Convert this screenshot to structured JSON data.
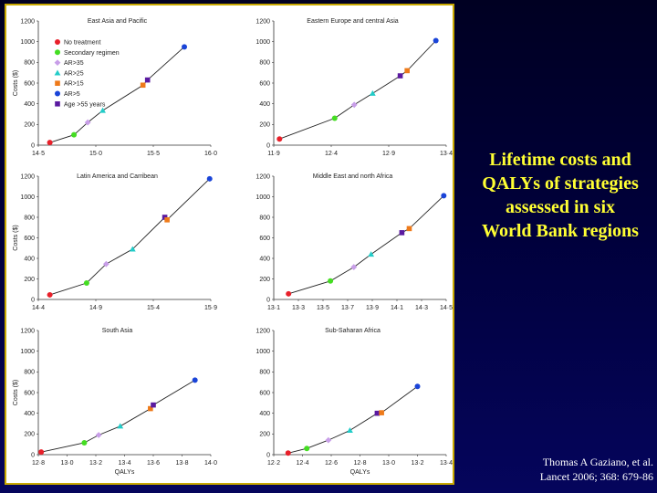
{
  "caption": {
    "lines": [
      "Lifetime costs and",
      "QALYs of strategies",
      "assessed in six",
      "World Bank regions"
    ]
  },
  "citation": {
    "author": "Thomas A Gaziano, et al.",
    "source": "Lancet 2006; 368: 679-86"
  },
  "legend": [
    {
      "label": "No treatment",
      "color": "#e8202a",
      "shape": "circle"
    },
    {
      "label": "Secondary regimen",
      "color": "#44dd22",
      "shape": "circle"
    },
    {
      "label": "AR>35",
      "color": "#c89ee8",
      "shape": "diamond"
    },
    {
      "label": "AR>25",
      "color": "#22ccc8",
      "shape": "triangle"
    },
    {
      "label": "AR>15",
      "color": "#ee7a1a",
      "shape": "square"
    },
    {
      "label": "AR>5",
      "color": "#1a44d8",
      "shape": "circle"
    },
    {
      "label": "Age >55 years",
      "color": "#5a1aa0",
      "shape": "square"
    }
  ],
  "chart_data": [
    {
      "type": "line",
      "title": "East Asia and Pacific",
      "xlabel": "",
      "ylabel": "Costs ($)",
      "xlim": [
        14.5,
        16.0
      ],
      "ylim": [
        0,
        1200
      ],
      "xticks": [
        "14·5",
        "15·0",
        "15·5",
        "16·0"
      ],
      "yticks": [
        "0",
        "200",
        "400",
        "600",
        "800",
        "1000",
        "1200"
      ],
      "points": [
        {
          "series": "No treatment",
          "x": 14.6,
          "y": 25
        },
        {
          "series": "Secondary regimen",
          "x": 14.81,
          "y": 100
        },
        {
          "series": "AR>35",
          "x": 14.93,
          "y": 220
        },
        {
          "series": "AR>25",
          "x": 15.06,
          "y": 335
        },
        {
          "series": "AR>15",
          "x": 15.41,
          "y": 580
        },
        {
          "series": "Age >55 years",
          "x": 15.45,
          "y": 630
        },
        {
          "series": "AR>5",
          "x": 15.77,
          "y": 950
        }
      ]
    },
    {
      "type": "line",
      "title": "Eastern Europe and central Asia",
      "xlabel": "",
      "ylabel": "",
      "xlim": [
        11.9,
        13.4
      ],
      "ylim": [
        0,
        1200
      ],
      "xticks": [
        "11·9",
        "12·4",
        "12·9",
        "13·4"
      ],
      "yticks": [
        "0",
        "200",
        "400",
        "600",
        "800",
        "1000",
        "1200"
      ],
      "points": [
        {
          "series": "No treatment",
          "x": 11.95,
          "y": 60
        },
        {
          "series": "Secondary regimen",
          "x": 12.43,
          "y": 260
        },
        {
          "series": "AR>35",
          "x": 12.6,
          "y": 390
        },
        {
          "series": "AR>25",
          "x": 12.76,
          "y": 500
        },
        {
          "series": "Age >55 years",
          "x": 13.0,
          "y": 670
        },
        {
          "series": "AR>15",
          "x": 13.06,
          "y": 720
        },
        {
          "series": "AR>5",
          "x": 13.31,
          "y": 1010
        }
      ]
    },
    {
      "type": "line",
      "title": "Latin America and Carribean",
      "xlabel": "",
      "ylabel": "Costs ($)",
      "xlim": [
        14.4,
        15.9
      ],
      "ylim": [
        0,
        1200
      ],
      "xticks": [
        "14·4",
        "14·9",
        "15·4",
        "15·9"
      ],
      "yticks": [
        "0",
        "200",
        "400",
        "600",
        "800",
        "1000",
        "1200"
      ],
      "points": [
        {
          "series": "No treatment",
          "x": 14.5,
          "y": 45
        },
        {
          "series": "Secondary regimen",
          "x": 14.82,
          "y": 160
        },
        {
          "series": "AR>35",
          "x": 14.99,
          "y": 345
        },
        {
          "series": "AR>25",
          "x": 15.22,
          "y": 490
        },
        {
          "series": "Age >55 years",
          "x": 15.5,
          "y": 800
        },
        {
          "series": "AR>15",
          "x": 15.52,
          "y": 775
        },
        {
          "series": "AR>5",
          "x": 15.89,
          "y": 1175
        }
      ]
    },
    {
      "type": "line",
      "title": "Middle East and north Africa",
      "xlabel": "",
      "ylabel": "",
      "xlim": [
        13.1,
        14.5
      ],
      "ylim": [
        0,
        1200
      ],
      "xticks": [
        "13·1",
        "13·3",
        "13·5",
        "13·7",
        "13·9",
        "14·1",
        "14·3",
        "14·5"
      ],
      "yticks": [
        "0",
        "200",
        "400",
        "600",
        "800",
        "1000",
        "1200"
      ],
      "points": [
        {
          "series": "No treatment",
          "x": 13.22,
          "y": 55
        },
        {
          "series": "Secondary regimen",
          "x": 13.56,
          "y": 180
        },
        {
          "series": "AR>35",
          "x": 13.75,
          "y": 315
        },
        {
          "series": "AR>25",
          "x": 13.89,
          "y": 440
        },
        {
          "series": "Age >55 years",
          "x": 14.14,
          "y": 650
        },
        {
          "series": "AR>15",
          "x": 14.2,
          "y": 690
        },
        {
          "series": "AR>5",
          "x": 14.48,
          "y": 1010
        }
      ]
    },
    {
      "type": "line",
      "title": "South Asia",
      "xlabel": "QALYs",
      "ylabel": "Costs ($)",
      "xlim": [
        12.8,
        14.0
      ],
      "ylim": [
        0,
        1200
      ],
      "xticks": [
        "12·8",
        "13·0",
        "13·2",
        "13·4",
        "13·6",
        "13·8",
        "14·0"
      ],
      "yticks": [
        "0",
        "200",
        "400",
        "600",
        "800",
        "1000",
        "1200"
      ],
      "points": [
        {
          "series": "No treatment",
          "x": 12.82,
          "y": 25
        },
        {
          "series": "Secondary regimen",
          "x": 13.12,
          "y": 115
        },
        {
          "series": "AR>35",
          "x": 13.22,
          "y": 190
        },
        {
          "series": "AR>25",
          "x": 13.37,
          "y": 275
        },
        {
          "series": "AR>15",
          "x": 13.58,
          "y": 445
        },
        {
          "series": "Age >55 years",
          "x": 13.6,
          "y": 480
        },
        {
          "series": "AR>5",
          "x": 13.89,
          "y": 720
        }
      ]
    },
    {
      "type": "line",
      "title": "Sub-Saharan Africa",
      "xlabel": "QALYs",
      "ylabel": "",
      "xlim": [
        12.2,
        13.4
      ],
      "ylim": [
        0,
        1200
      ],
      "xticks": [
        "12·2",
        "12·4",
        "12·6",
        "12·8",
        "13·0",
        "13·2",
        "13·4"
      ],
      "yticks": [
        "0",
        "200",
        "400",
        "600",
        "800",
        "1000",
        "1200"
      ],
      "points": [
        {
          "series": "No treatment",
          "x": 12.3,
          "y": 15
        },
        {
          "series": "Secondary regimen",
          "x": 12.43,
          "y": 60
        },
        {
          "series": "AR>35",
          "x": 12.58,
          "y": 140
        },
        {
          "series": "AR>25",
          "x": 12.73,
          "y": 235
        },
        {
          "series": "Age >55 years",
          "x": 12.92,
          "y": 400
        },
        {
          "series": "AR>15",
          "x": 12.95,
          "y": 405
        },
        {
          "series": "AR>5",
          "x": 13.2,
          "y": 660
        }
      ]
    }
  ]
}
